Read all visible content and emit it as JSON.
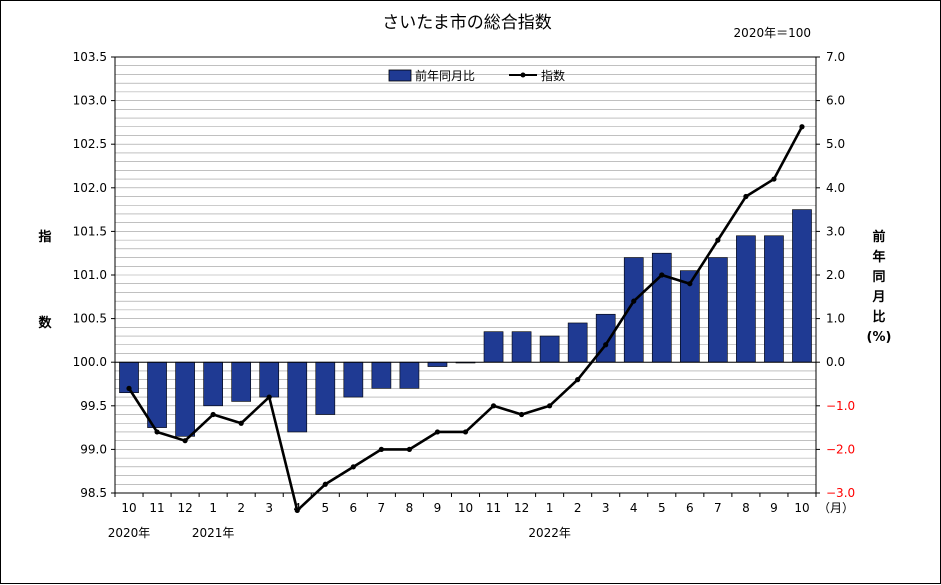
{
  "chart_data": {
    "type": "bar+line",
    "title": "さいたま市の総合指数",
    "base_note": "2020年＝100",
    "categories": [
      "10",
      "11",
      "12",
      "1",
      "2",
      "3",
      "4",
      "5",
      "6",
      "7",
      "8",
      "9",
      "10",
      "11",
      "12",
      "1",
      "2",
      "3",
      "4",
      "5",
      "6",
      "7",
      "8",
      "9",
      "10"
    ],
    "month_unit": "（月）",
    "year_labels": [
      {
        "label": "2020年",
        "index": 0
      },
      {
        "label": "2021年",
        "index": 3
      },
      {
        "label": "2022年",
        "index": 15
      }
    ],
    "left_axis": {
      "label_chars": [
        "指",
        "数"
      ],
      "ylim": [
        98.5,
        103.5
      ],
      "ticks": [
        "98.5",
        "99.0",
        "99.5",
        "100.0",
        "100.5",
        "101.0",
        "101.5",
        "102.0",
        "102.5",
        "103.0",
        "103.5"
      ]
    },
    "right_axis": {
      "label": "前年同月比（%）",
      "label_chars": [
        "前",
        "年",
        "同",
        "月",
        "比",
        "(%)"
      ],
      "ylim": [
        -3.0,
        7.0
      ],
      "ticks": [
        "-3.0",
        "-2.0",
        "-1.0",
        "0.0",
        "1.0",
        "2.0",
        "3.0",
        "4.0",
        "5.0",
        "6.0",
        "7.0"
      ],
      "negative_color": "#ff0000"
    },
    "series": [
      {
        "name": "前年同月比",
        "kind": "bar",
        "axis": "right",
        "color": "#1f3a93",
        "values": [
          -0.7,
          -1.5,
          -1.7,
          -1.0,
          -0.9,
          -0.8,
          -1.6,
          -1.2,
          -0.8,
          -0.6,
          -0.6,
          -0.1,
          0.0,
          0.7,
          0.7,
          0.6,
          0.9,
          1.1,
          2.4,
          2.5,
          2.1,
          2.4,
          2.9,
          2.9,
          3.5
        ]
      },
      {
        "name": "指数",
        "kind": "line",
        "axis": "left",
        "color": "#000000",
        "values": [
          99.7,
          99.2,
          99.1,
          99.4,
          99.3,
          99.6,
          98.3,
          98.6,
          98.8,
          99.0,
          99.0,
          99.2,
          99.2,
          99.5,
          99.4,
          99.5,
          99.8,
          100.2,
          100.7,
          101.0,
          100.9,
          101.4,
          101.9,
          102.1,
          102.7
        ]
      }
    ],
    "grid": true,
    "legend_position": "top-center"
  }
}
